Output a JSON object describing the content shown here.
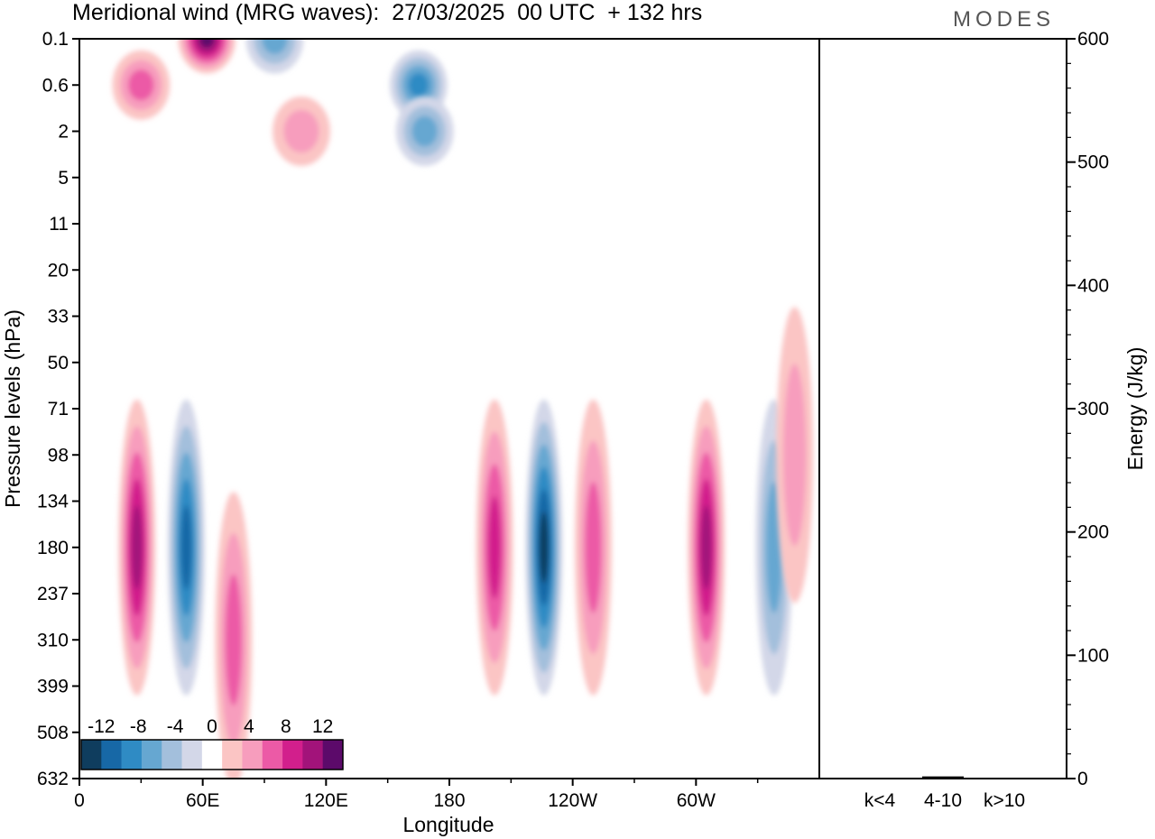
{
  "title": "Meridional wind (MRG waves):  27/03/2025  00 UTC  + 132 hrs",
  "brand": "MODES",
  "colors": {
    "neg": [
      "#0f3d5e",
      "#1768a6",
      "#2f8bc4",
      "#66a7d1",
      "#a3bfdc",
      "#d3d7e8"
    ],
    "pos": [
      "#fbc5c4",
      "#f79dbd",
      "#ec5aa6",
      "#d21f8c",
      "#a2137a",
      "#5c0a6a"
    ],
    "frame": "#000000"
  },
  "chart_data": [
    {
      "type": "heatmap",
      "xlabel": "Longitude",
      "ylabel": "Pressure levels (hPa)",
      "x_ticks": [
        "0",
        "60E",
        "120E",
        "180",
        "120W",
        "60W"
      ],
      "x_tick_values": [
        0,
        60,
        120,
        180,
        240,
        300
      ],
      "xlim": [
        0,
        360
      ],
      "y_ticks": [
        "0.1",
        "0.6",
        "2",
        "5",
        "11",
        "20",
        "33",
        "50",
        "71",
        "98",
        "134",
        "180",
        "237",
        "310",
        "399",
        "508",
        "632"
      ],
      "colorbar": {
        "tick_labels": [
          "-12",
          "-8",
          "-4",
          "0",
          "4",
          "8",
          "12"
        ],
        "levels": [
          -14,
          -12,
          -10,
          -8,
          -6,
          -4,
          -2,
          2,
          4,
          6,
          8,
          10,
          12,
          14
        ]
      },
      "features": [
        {
          "lon": 30,
          "level": 0.6,
          "value": 6
        },
        {
          "lon": 62,
          "level": 0.1,
          "value": 12
        },
        {
          "lon": 95,
          "level": 0.1,
          "value": -5
        },
        {
          "lon": 165,
          "level": 0.6,
          "value": -7
        },
        {
          "lon": 168,
          "level": 2,
          "value": -5
        },
        {
          "lon": 108,
          "level": 2,
          "value": 4
        },
        {
          "lon": 28,
          "level": 180,
          "value": 10
        },
        {
          "lon": 52,
          "level": 180,
          "value": -9
        },
        {
          "lon": 75,
          "level": 310,
          "value": 6
        },
        {
          "lon": 202,
          "level": 180,
          "value": 8
        },
        {
          "lon": 226,
          "level": 180,
          "value": -12
        },
        {
          "lon": 250,
          "level": 180,
          "value": 6
        },
        {
          "lon": 305,
          "level": 180,
          "value": 9
        },
        {
          "lon": 338,
          "level": 180,
          "value": -5
        },
        {
          "lon": 348,
          "level": 98,
          "value": 4
        }
      ]
    },
    {
      "type": "bar",
      "categories": [
        "k<4",
        "4-10",
        "k>10"
      ],
      "values": [
        0,
        1,
        0
      ],
      "ylabel": "Energy (J/kg)",
      "ylim": [
        0,
        600
      ],
      "y_ticks": [
        0,
        100,
        200,
        300,
        400,
        500,
        600
      ]
    }
  ]
}
